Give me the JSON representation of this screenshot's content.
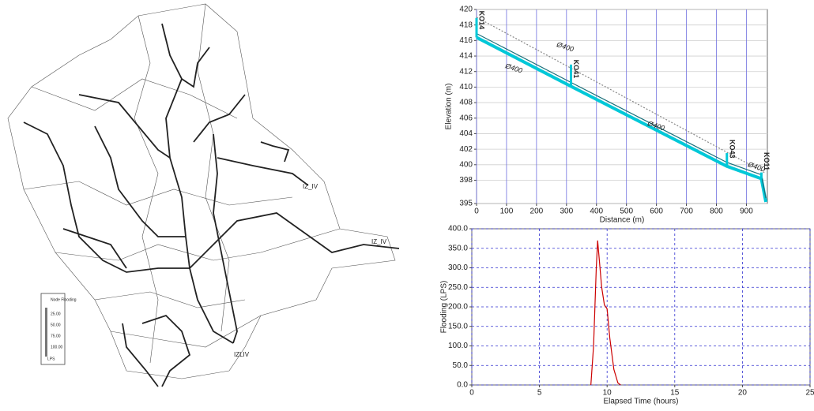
{
  "map": {
    "labels": [
      "IZ_IV",
      "IZ_IV",
      "IZLIV"
    ],
    "legend": {
      "title": "Node Flooding",
      "items": [
        "25.00",
        "50.00",
        "75.00",
        "100.00"
      ],
      "unit": "LPS"
    }
  },
  "chart_data": [
    {
      "type": "line",
      "xlabel": "Distance (m)",
      "ylabel": "Elevation (m)",
      "xlim": [
        0,
        970
      ],
      "ylim": [
        395,
        420
      ],
      "xticks": [
        0,
        100,
        200,
        300,
        400,
        500,
        600,
        700,
        800,
        900
      ],
      "yticks": [
        395,
        398,
        400,
        402,
        404,
        406,
        408,
        410,
        412,
        414,
        416,
        418,
        420
      ],
      "grid": true,
      "series": [
        {
          "color": "#888888",
          "x": [
            0,
            960
          ],
          "values": [
            419,
            399
          ]
        },
        {
          "color": "#00c8d8",
          "x": [
            0,
            315,
            835,
            950,
            965
          ],
          "values": [
            416.4,
            410.1,
            399.8,
            398.2,
            395.2
          ]
        },
        {
          "color": "#1a6f7a",
          "x": [
            0,
            315,
            835,
            950,
            965
          ],
          "values": [
            416.9,
            410.6,
            400.3,
            398.7,
            395.7
          ]
        }
      ],
      "nodes": [
        {
          "label": "KO14",
          "x": 0,
          "invert": 416.4,
          "rim": 418.9
        },
        {
          "label": "KO41",
          "x": 315,
          "invert": 410.1,
          "rim": 412.9
        },
        {
          "label": "KO43",
          "x": 835,
          "invert": 399.8,
          "rim": 401.5
        },
        {
          "label": "KO11",
          "x": 950,
          "invert": 398.2,
          "rim": 399
        }
      ],
      "pipe_labels": [
        "Ø400",
        "Ø400",
        "Ø400",
        "Ø400"
      ]
    },
    {
      "type": "line",
      "xlabel": "Elapsed Time (hours)",
      "ylabel": "Flooding (LPS)",
      "xlim": [
        0,
        25
      ],
      "ylim": [
        0,
        400
      ],
      "xticks": [
        0,
        5,
        10,
        15,
        20,
        25
      ],
      "yticks": [
        {
          "value": 0,
          "label": "0.0"
        },
        {
          "value": 50,
          "label": "50.0"
        },
        {
          "value": 100,
          "label": "100.0"
        },
        {
          "value": 150,
          "label": "150.0"
        },
        {
          "value": 200,
          "label": "200.0"
        },
        {
          "value": 250,
          "label": "250.0"
        },
        {
          "value": 300,
          "label": "300.0"
        },
        {
          "value": 350,
          "label": "350.0"
        },
        {
          "value": 400,
          "label": "400.0"
        }
      ],
      "grid": true,
      "series": [
        {
          "color": "#cc0000",
          "x": [
            8.8,
            9.0,
            9.2,
            9.3,
            9.4,
            9.6,
            9.8,
            10.0,
            10.2,
            10.5,
            10.8,
            11.0
          ],
          "values": [
            0,
            100,
            300,
            370,
            330,
            250,
            205,
            195,
            120,
            40,
            5,
            0
          ]
        }
      ]
    }
  ]
}
